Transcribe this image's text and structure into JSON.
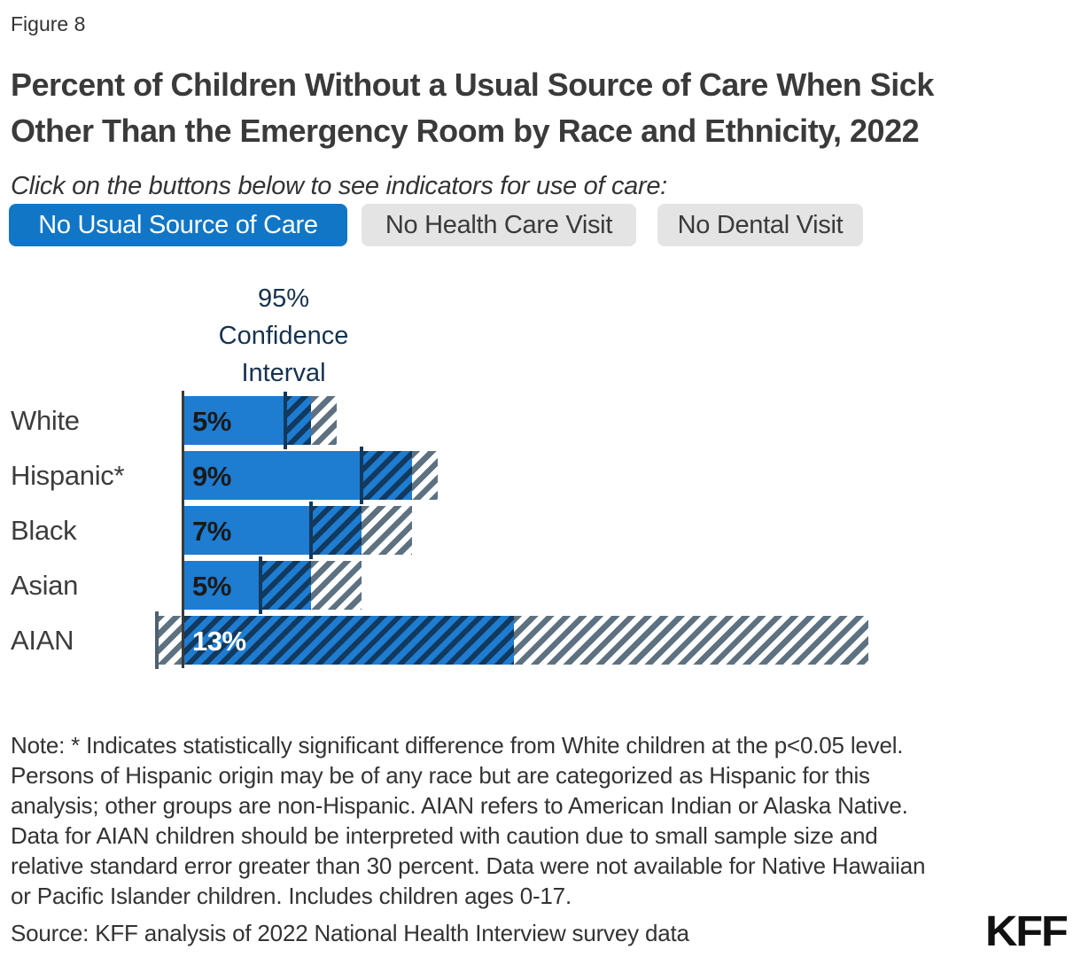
{
  "figure_label": "Figure 8",
  "title_lines": [
    "Percent of Children Without a Usual Source of Care When Sick",
    "Other Than the Emergency Room by Race and Ethnicity, 2022"
  ],
  "subtitle": "Click on the buttons below to see indicators for use of care:",
  "buttons": [
    {
      "label": "No Usual Source of Care",
      "active": true
    },
    {
      "label": "No Health Care Visit",
      "active": false
    },
    {
      "label": "No Dental Visit",
      "active": false
    }
  ],
  "ci_label_lines": [
    "95%",
    "Confidence",
    "Interval"
  ],
  "chart_data": {
    "type": "bar",
    "orientation": "horizontal",
    "unit": "percent",
    "title": "Percent of Children Without a Usual Source of Care When Sick Other Than the Emergency Room by Race and Ethnicity, 2022",
    "categories": [
      "White",
      "Hispanic*",
      "Black",
      "Asian",
      "AIAN"
    ],
    "values": [
      5,
      9,
      7,
      5,
      13
    ],
    "value_labels": [
      "5%",
      "9%",
      "7%",
      "5%",
      "13%"
    ],
    "ci_level": "95%",
    "confidence_intervals": [
      [
        4,
        6
      ],
      [
        7,
        10
      ],
      [
        5,
        9
      ],
      [
        3,
        7
      ],
      [
        -1.1,
        27
      ]
    ],
    "xlim": [
      0,
      35.4
    ],
    "gridlines": false,
    "legend_position": "above-first-bar",
    "value_label_inverted": [
      false,
      false,
      false,
      false,
      true
    ]
  },
  "note_lines": [
    "Note: * Indicates statistically significant difference from White children at the p<0.05 level.",
    "Persons of Hispanic origin may be of any race but are categorized as Hispanic for this",
    "analysis; other groups are non-Hispanic. AIAN refers to American Indian or Alaska Native.",
    "Data for AIAN children should be interpreted with caution due to small sample size and",
    "relative standard error greater than 30 percent. Data were not available for Native Hawaiian",
    "or Pacific Islander children. Includes children ages 0-17."
  ],
  "source": "Source: KFF analysis of 2022 National Health Interview survey data",
  "logo_text": "KFF",
  "colors": {
    "bar_blue": "#1e7cd1",
    "hatch_navy": "#12395e",
    "hatch_gray": "#5d7181",
    "active_button_bg": "#1176c6",
    "inactive_button_bg": "#e4e4e4",
    "ci_label_text": "#16324f",
    "axis": "#3a3a3a"
  }
}
